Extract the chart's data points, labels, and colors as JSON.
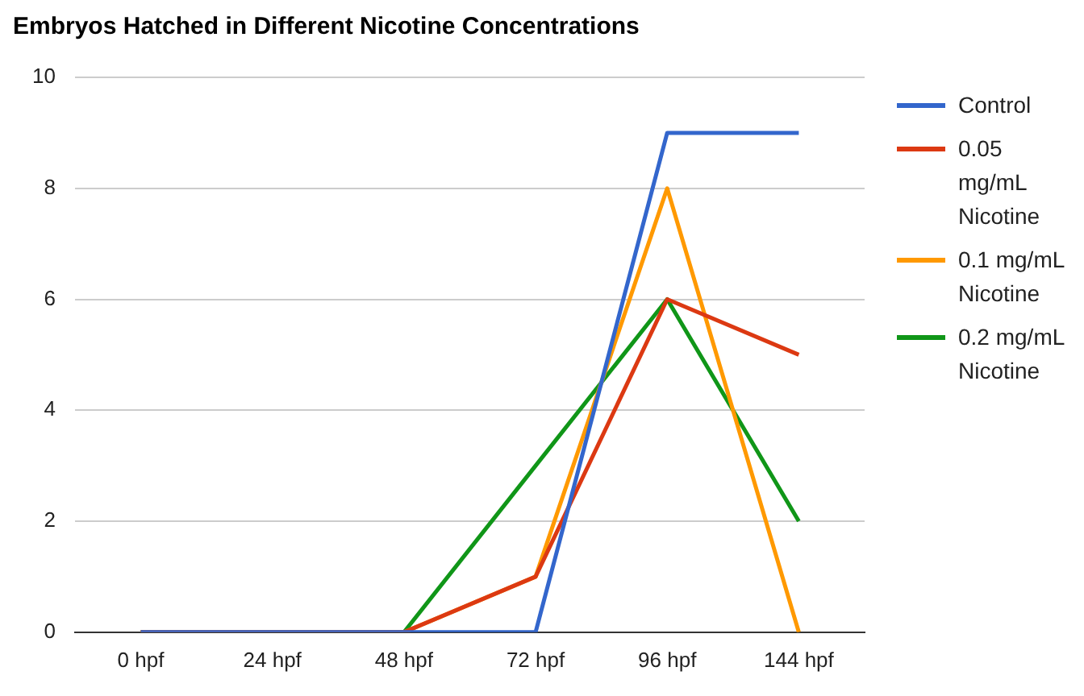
{
  "chart_data": {
    "type": "line",
    "title": "Embryos Hatched in Different Nicotine Concentrations",
    "categories": [
      "0 hpf",
      "24 hpf",
      "48 hpf",
      "72 hpf",
      "96 hpf",
      "144 hpf"
    ],
    "series": [
      {
        "name": "Control",
        "color": "#3366cc",
        "values": [
          0,
          0,
          0,
          0,
          9,
          9
        ]
      },
      {
        "name": "0.05 mg/mL Nicotine",
        "color": "#dc3912",
        "values": [
          0,
          0,
          0,
          1,
          6,
          5
        ]
      },
      {
        "name": "0.1 mg/mL Nicotine",
        "color": "#ff9900",
        "values": [
          0,
          0,
          0,
          1,
          8,
          0
        ]
      },
      {
        "name": "0.2 mg/mL Nicotine",
        "color": "#109618",
        "values": [
          0,
          0,
          0,
          3,
          6,
          2
        ]
      }
    ],
    "ylim": [
      0,
      10
    ],
    "yticks": [
      0,
      2,
      4,
      6,
      8,
      10
    ],
    "grid": "y",
    "legend": "right",
    "marker": "none",
    "line_style": "solid"
  }
}
